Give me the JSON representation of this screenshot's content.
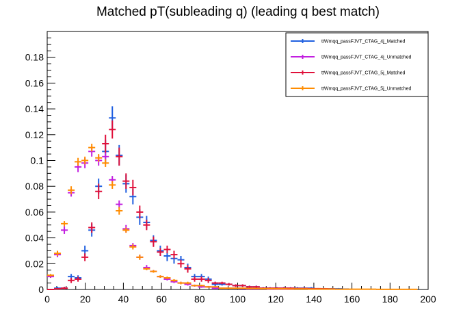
{
  "chart_data": {
    "type": "scatter",
    "title": "Matched pT(subleading q) (leading q  best match)",
    "xlabel": "",
    "ylabel": "",
    "xlim": [
      0,
      200
    ],
    "ylim": [
      0,
      0.2
    ],
    "bin_width": 3.6,
    "x_ticks": [
      0,
      20,
      40,
      60,
      80,
      100,
      120,
      140,
      160,
      180,
      200
    ],
    "y_ticks": [
      0,
      0.02,
      0.04,
      0.06,
      0.08,
      0.1,
      0.12,
      0.14,
      0.16,
      0.18
    ],
    "y_tick_labels": [
      "0",
      "0.02",
      "0.04",
      "0.06",
      "0.08",
      "0.1",
      "0.12",
      "0.14",
      "0.16",
      "0.18"
    ],
    "legend_position": "top-right",
    "series": [
      {
        "name": "ttWmqq_passFJVT_CTAG_4j_Matched",
        "color": "#1f5fe0",
        "x": [
          1.8,
          5.4,
          9,
          12.6,
          16.2,
          19.8,
          23.4,
          27,
          30.6,
          34.2,
          37.8,
          41.4,
          45,
          48.6,
          52.2,
          55.8,
          59.4,
          63,
          66.6,
          70.2,
          73.8,
          77.4,
          81,
          84.6,
          88.2,
          91.8,
          95.4,
          99,
          102.6,
          106.2,
          109.8,
          113.4,
          117,
          120.6,
          124.2,
          127.8,
          131.4,
          135,
          138.6,
          142.2,
          145.8,
          149.4,
          153,
          156.6
        ],
        "y": [
          0.0,
          0.001,
          0.001,
          0.01,
          0.009,
          0.03,
          0.046,
          0.08,
          0.107,
          0.133,
          0.104,
          0.082,
          0.072,
          0.056,
          0.052,
          0.038,
          0.03,
          0.026,
          0.024,
          0.023,
          0.017,
          0.01,
          0.01,
          0.008,
          0.004,
          0.004,
          0.004,
          0.003,
          0.003,
          0.002,
          0.002,
          0.001,
          0.001,
          0.001,
          0.001,
          0.001,
          0.001,
          0.001,
          0.001,
          0.0005,
          0.0005,
          0.0005,
          0.0005,
          0.0003
        ],
        "err": [
          0.0,
          0.001,
          0.001,
          0.002,
          0.002,
          0.004,
          0.005,
          0.006,
          0.009,
          0.009,
          0.008,
          0.007,
          0.006,
          0.006,
          0.005,
          0.004,
          0.004,
          0.004,
          0.004,
          0.003,
          0.003,
          0.002,
          0.002,
          0.002,
          0.002,
          0.001,
          0.001,
          0.001,
          0.001,
          0.001,
          0.001,
          0.0008,
          0.0008,
          0.0008,
          0.0008,
          0.0008,
          0.0008,
          0.0008,
          0.0008,
          0.0006,
          0.0006,
          0.0006,
          0.0006,
          0.0005
        ]
      },
      {
        "name": "ttWmqq_passFJVT_CTAG_4j_Unmatched",
        "color": "#c21fe0",
        "x": [
          1.8,
          5.4,
          9,
          12.6,
          16.2,
          19.8,
          23.4,
          27,
          30.6,
          34.2,
          37.8,
          41.4,
          45,
          48.6,
          52.2,
          55.8,
          59.4,
          63,
          66.6,
          70.2,
          73.8,
          77.4,
          81,
          84.6,
          88.2,
          91.8,
          95.4,
          99,
          102.6,
          106.2,
          109.8,
          113.4,
          117,
          120.6,
          124.2,
          127.8
        ],
        "y": [
          0.01,
          0.027,
          0.046,
          0.075,
          0.095,
          0.098,
          0.107,
          0.1,
          0.103,
          0.085,
          0.066,
          0.047,
          0.034,
          0.025,
          0.017,
          0.014,
          0.01,
          0.008,
          0.006,
          0.005,
          0.004,
          0.003,
          0.002,
          0.002,
          0.001,
          0.001,
          0.001,
          0.001,
          0.0007,
          0.0005,
          0.0005,
          0.0005,
          0.0003,
          0.0003,
          0.0003,
          0.0002
        ],
        "err": [
          0.001,
          0.002,
          0.003,
          0.003,
          0.004,
          0.004,
          0.004,
          0.004,
          0.004,
          0.003,
          0.003,
          0.003,
          0.002,
          0.002,
          0.002,
          0.001,
          0.001,
          0.001,
          0.001,
          0.001,
          0.001,
          0.0008,
          0.0007,
          0.0007,
          0.0005,
          0.0005,
          0.0005,
          0.0005,
          0.0004,
          0.0004,
          0.0004,
          0.0004,
          0.0003,
          0.0003,
          0.0003,
          0.0002
        ]
      },
      {
        "name": "ttWmqq_passFJVT_CTAG_5j_Matched",
        "color": "#e0103a",
        "x": [
          1.8,
          5.4,
          9,
          12.6,
          16.2,
          19.8,
          23.4,
          27,
          30.6,
          34.2,
          37.8,
          41.4,
          45,
          48.6,
          52.2,
          55.8,
          59.4,
          63,
          66.6,
          70.2,
          73.8,
          77.4,
          81,
          84.6,
          88.2,
          91.8,
          95.4,
          99,
          102.6,
          106.2,
          109.8,
          113.4,
          117,
          120.6,
          124.2,
          127.8,
          131.4,
          135,
          138.6,
          142.2,
          145.8,
          149.4
        ],
        "y": [
          0.0,
          0.0005,
          0.001,
          0.007,
          0.008,
          0.025,
          0.048,
          0.076,
          0.113,
          0.124,
          0.103,
          0.084,
          0.079,
          0.06,
          0.05,
          0.037,
          0.029,
          0.031,
          0.027,
          0.02,
          0.016,
          0.008,
          0.008,
          0.007,
          0.005,
          0.005,
          0.004,
          0.003,
          0.003,
          0.002,
          0.002,
          0.001,
          0.001,
          0.001,
          0.001,
          0.001,
          0.0008,
          0.0008,
          0.0006,
          0.0006,
          0.0005,
          0.0004
        ],
        "err": [
          0.0,
          0.0005,
          0.001,
          0.002,
          0.002,
          0.003,
          0.004,
          0.006,
          0.007,
          0.007,
          0.007,
          0.006,
          0.006,
          0.005,
          0.004,
          0.004,
          0.003,
          0.003,
          0.003,
          0.003,
          0.003,
          0.002,
          0.002,
          0.002,
          0.001,
          0.001,
          0.001,
          0.001,
          0.001,
          0.0008,
          0.0008,
          0.0006,
          0.0006,
          0.0006,
          0.0006,
          0.0006,
          0.0005,
          0.0005,
          0.0004,
          0.0004,
          0.0004,
          0.0003
        ]
      },
      {
        "name": "ttWmqq_passFJVT_CTAG_5j_Unmatched",
        "color": "#ff8c00",
        "x": [
          1.8,
          5.4,
          9,
          12.6,
          16.2,
          19.8,
          23.4,
          27,
          30.6,
          34.2,
          37.8,
          41.4,
          45,
          48.6,
          52.2,
          55.8,
          59.4,
          63,
          66.6,
          70.2,
          73.8,
          77.4,
          81,
          84.6,
          88.2,
          91.8,
          95.4,
          99,
          102.6,
          106.2,
          109.8,
          113.4,
          117,
          120.6,
          124.2,
          127.8,
          131.4,
          135,
          138.6,
          142.2,
          145.8,
          149.4,
          153,
          156.6,
          160.2,
          163.8,
          167.4,
          171,
          174.6,
          178.2,
          181.8,
          185.4,
          189,
          192.6
        ],
        "y": [
          0.011,
          0.028,
          0.051,
          0.077,
          0.099,
          0.1,
          0.11,
          0.102,
          0.098,
          0.081,
          0.061,
          0.046,
          0.033,
          0.025,
          0.016,
          0.014,
          0.01,
          0.009,
          0.007,
          0.005,
          0.005,
          0.003,
          0.003,
          0.002,
          0.002,
          0.001,
          0.001,
          0.001,
          0.001,
          0.0008,
          0.0008,
          0.0006,
          0.0006,
          0.0005,
          0.0005,
          0.0004,
          0.0004,
          0.0004,
          0.0003,
          0.0003,
          0.0003,
          0.0003,
          0.0002,
          0.0002,
          0.0002,
          0.0002,
          0.0002,
          0.0002,
          0.0001,
          0.0001,
          0.0001,
          0.0001,
          0.0001,
          0.0001
        ],
        "err": [
          0.001,
          0.002,
          0.002,
          0.003,
          0.003,
          0.003,
          0.003,
          0.003,
          0.003,
          0.003,
          0.003,
          0.002,
          0.002,
          0.002,
          0.001,
          0.001,
          0.001,
          0.001,
          0.001,
          0.001,
          0.001,
          0.0007,
          0.0007,
          0.0006,
          0.0006,
          0.0005,
          0.0005,
          0.0005,
          0.0005,
          0.0004,
          0.0004,
          0.0003,
          0.0003,
          0.0003,
          0.0003,
          0.0003,
          0.0003,
          0.0003,
          0.0002,
          0.0002,
          0.0002,
          0.0002,
          0.0002,
          0.0002,
          0.0002,
          0.0002,
          0.0002,
          0.0002,
          0.0001,
          0.0001,
          0.0001,
          0.0001,
          0.0001,
          0.0001
        ]
      }
    ]
  }
}
